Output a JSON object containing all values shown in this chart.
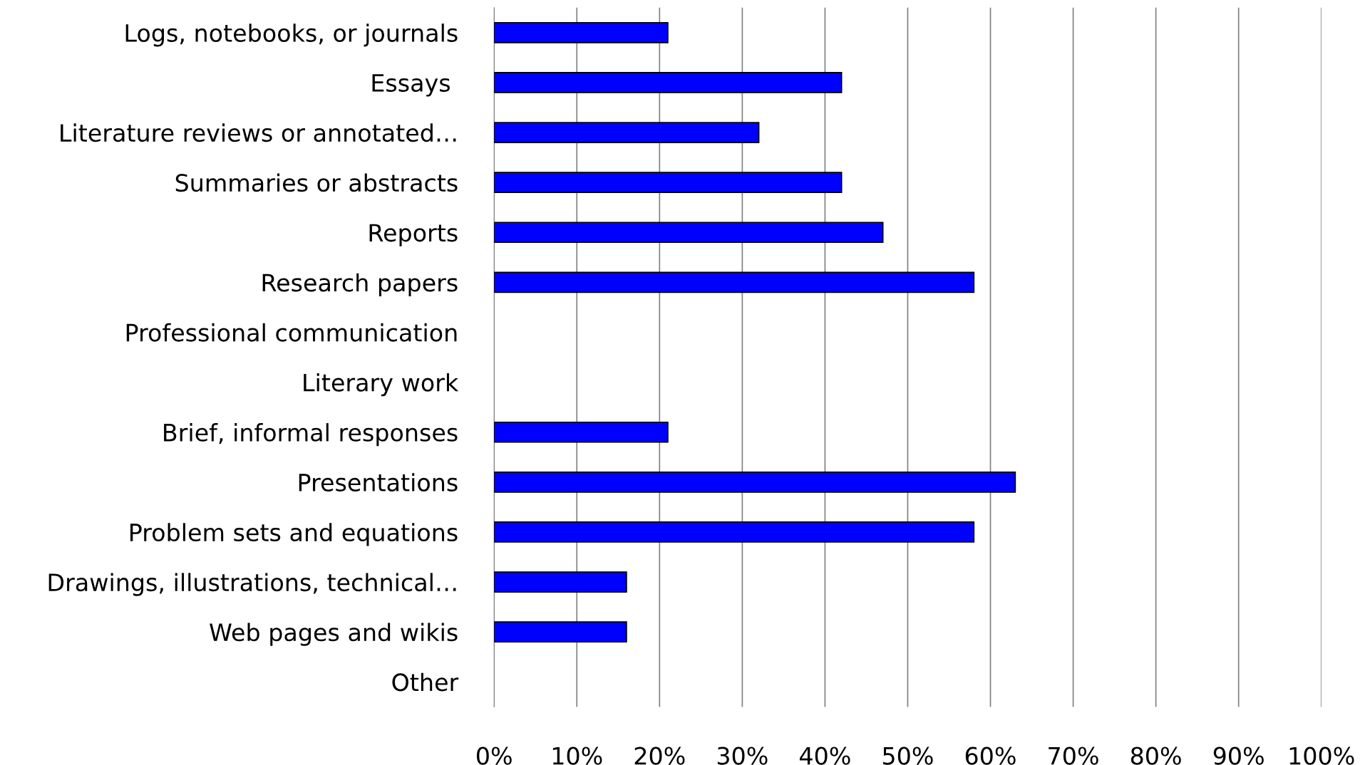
{
  "chart_data": {
    "type": "bar",
    "orientation": "horizontal",
    "categories": [
      "Logs, notebooks, or journals",
      "Essays ",
      "Literature reviews or annotated…",
      "Summaries or abstracts",
      "Reports",
      "Research papers",
      "Professional communication",
      "Literary work",
      "Brief, informal responses",
      "Presentations",
      "Problem sets and equations",
      "Drawings, illustrations, technical…",
      "Web pages and wikis",
      "Other"
    ],
    "values": [
      21,
      42,
      32,
      42,
      47,
      58,
      0,
      0,
      21,
      63,
      58,
      16,
      16,
      0
    ],
    "color": "#0000ff",
    "xlim": [
      0,
      100
    ],
    "xticks": [
      {
        "value": 0,
        "label": "0%"
      },
      {
        "value": 10,
        "label": "10%"
      },
      {
        "value": 20,
        "label": "20%"
      },
      {
        "value": 30,
        "label": "30%"
      },
      {
        "value": 40,
        "label": "40%"
      },
      {
        "value": 50,
        "label": "50%"
      },
      {
        "value": 60,
        "label": "60%"
      },
      {
        "value": 70,
        "label": "70%"
      },
      {
        "value": 80,
        "label": "80%"
      },
      {
        "value": 90,
        "label": "90%"
      },
      {
        "value": 100,
        "label": "100%"
      }
    ],
    "grid": "x",
    "legend": false
  }
}
